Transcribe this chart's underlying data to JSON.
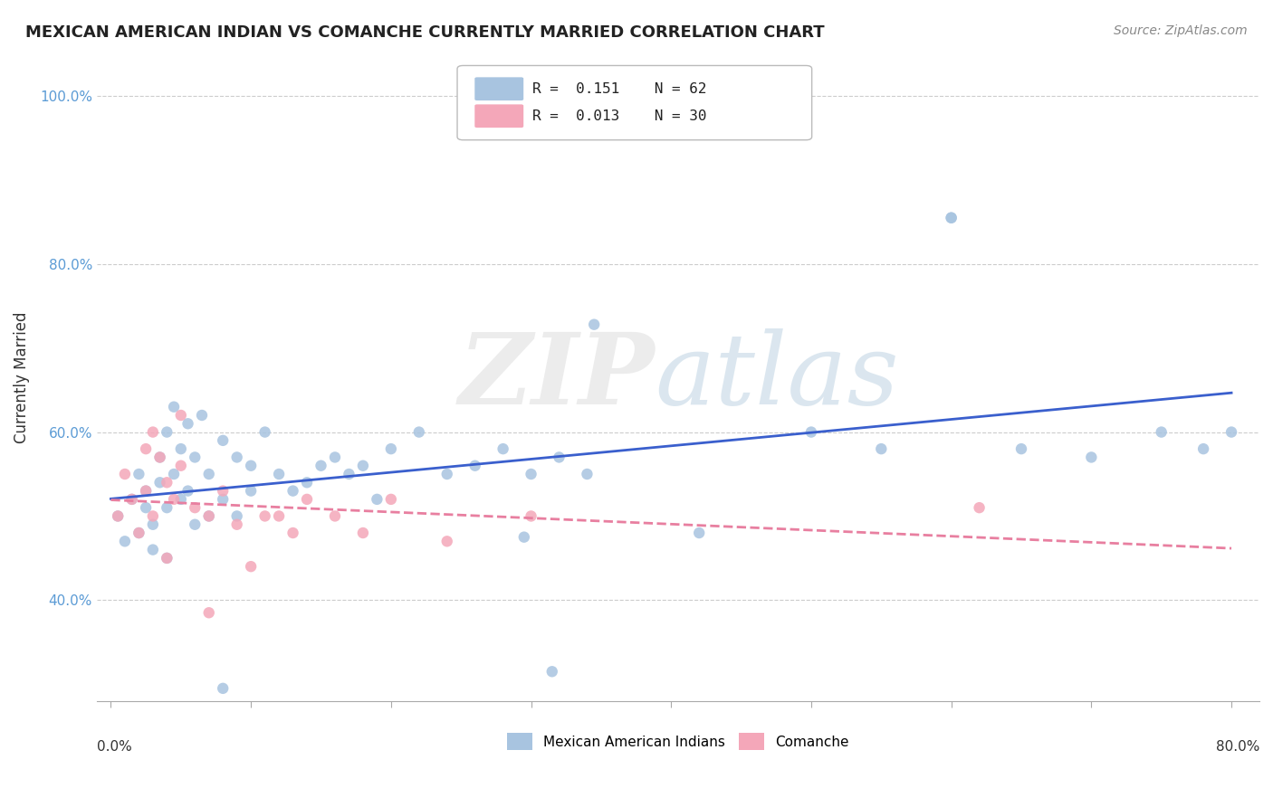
{
  "title": "MEXICAN AMERICAN INDIAN VS COMANCHE CURRENTLY MARRIED CORRELATION CHART",
  "source": "Source: ZipAtlas.com",
  "ylabel": "Currently Married",
  "legend1_r": "0.151",
  "legend1_n": "62",
  "legend2_r": "0.013",
  "legend2_n": "30",
  "blue_color": "#a8c4e0",
  "pink_color": "#f4a7b9",
  "trendline1_color": "#3a5fcd",
  "trendline2_color": "#e87fa0",
  "blue_x": [
    0.005,
    0.01,
    0.015,
    0.02,
    0.02,
    0.025,
    0.025,
    0.03,
    0.03,
    0.035,
    0.035,
    0.04,
    0.04,
    0.04,
    0.045,
    0.045,
    0.05,
    0.05,
    0.055,
    0.055,
    0.06,
    0.06,
    0.065,
    0.07,
    0.07,
    0.08,
    0.08,
    0.09,
    0.09,
    0.1,
    0.1,
    0.11,
    0.12,
    0.13,
    0.14,
    0.15,
    0.16,
    0.17,
    0.18,
    0.19,
    0.2,
    0.22,
    0.24,
    0.26,
    0.28,
    0.3,
    0.32,
    0.34,
    0.08,
    0.315,
    0.295,
    0.42,
    0.5,
    0.55,
    0.6,
    0.65,
    0.7,
    0.345,
    0.6,
    0.75,
    0.78,
    0.8
  ],
  "blue_y": [
    0.5,
    0.47,
    0.52,
    0.48,
    0.55,
    0.51,
    0.53,
    0.49,
    0.46,
    0.54,
    0.57,
    0.51,
    0.6,
    0.45,
    0.63,
    0.55,
    0.58,
    0.52,
    0.61,
    0.53,
    0.57,
    0.49,
    0.62,
    0.55,
    0.5,
    0.59,
    0.52,
    0.57,
    0.5,
    0.56,
    0.53,
    0.6,
    0.55,
    0.53,
    0.54,
    0.56,
    0.57,
    0.55,
    0.56,
    0.52,
    0.58,
    0.6,
    0.55,
    0.56,
    0.58,
    0.55,
    0.57,
    0.55,
    0.295,
    0.315,
    0.475,
    0.48,
    0.6,
    0.58,
    0.855,
    0.58,
    0.57,
    0.728,
    0.855,
    0.6,
    0.58,
    0.6
  ],
  "pink_x": [
    0.005,
    0.01,
    0.015,
    0.02,
    0.025,
    0.025,
    0.03,
    0.03,
    0.035,
    0.04,
    0.04,
    0.045,
    0.05,
    0.05,
    0.06,
    0.07,
    0.07,
    0.08,
    0.09,
    0.1,
    0.11,
    0.12,
    0.13,
    0.14,
    0.16,
    0.18,
    0.2,
    0.24,
    0.3,
    0.62
  ],
  "pink_y": [
    0.5,
    0.55,
    0.52,
    0.48,
    0.58,
    0.53,
    0.6,
    0.5,
    0.57,
    0.54,
    0.45,
    0.52,
    0.62,
    0.56,
    0.51,
    0.385,
    0.5,
    0.53,
    0.49,
    0.44,
    0.5,
    0.5,
    0.48,
    0.52,
    0.5,
    0.48,
    0.52,
    0.47,
    0.5,
    0.51
  ],
  "ytick_vals": [
    0.4,
    0.6,
    0.8,
    1.0
  ],
  "ytick_labels": [
    "40.0%",
    "60.0%",
    "80.0%",
    "100.0%"
  ],
  "xlim": [
    -0.01,
    0.82
  ],
  "ylim": [
    0.28,
    1.05
  ]
}
